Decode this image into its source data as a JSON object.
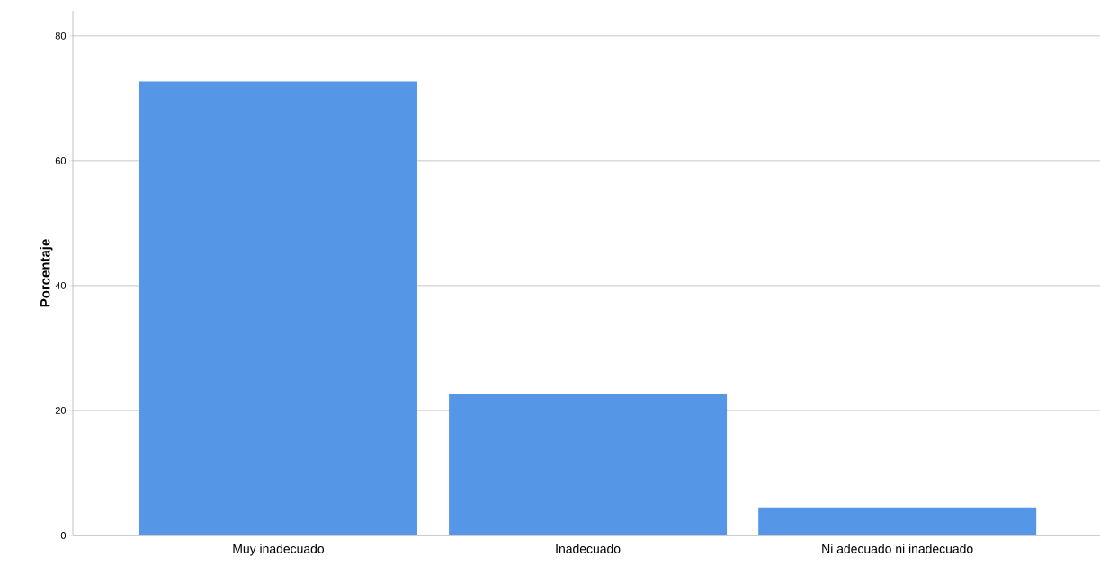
{
  "chart_data": {
    "type": "bar",
    "ylabel": "Porcentaje",
    "categories": [
      "Muy inadecuado",
      "Inadecuado",
      "Ni adecuado ni inadecuado"
    ],
    "values": [
      72.7,
      22.7,
      4.5
    ],
    "color": "#5596e6",
    "ylim": [
      0,
      84
    ],
    "yticks": [
      0,
      20,
      40,
      60,
      80
    ],
    "grid": "y"
  }
}
